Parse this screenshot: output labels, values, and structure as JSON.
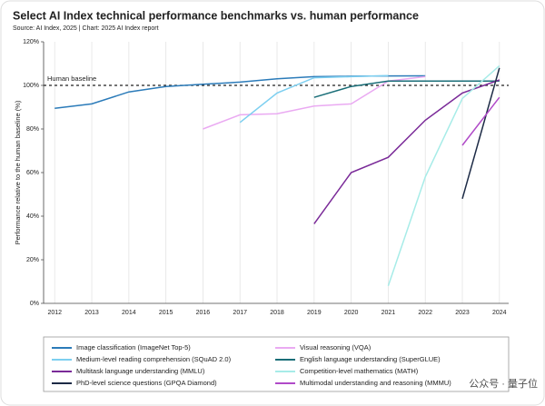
{
  "chart_data": {
    "type": "line",
    "title": "Select AI Index technical performance benchmarks vs. human performance",
    "subtitle": "Source: AI Index, 2025 | Chart: 2025 AI Index report",
    "y_label": "Performance relative to the human baseline (%)",
    "x": [
      2012,
      2013,
      2014,
      2015,
      2016,
      2017,
      2018,
      2019,
      2020,
      2021,
      2022,
      2023,
      2024
    ],
    "xlim": [
      2011.7,
      2024.25
    ],
    "xticks": [
      2012,
      2013,
      2014,
      2015,
      2016,
      2017,
      2018,
      2019,
      2020,
      2021,
      2022,
      2023,
      2024
    ],
    "ylim": [
      0,
      120
    ],
    "yticks": [
      {
        "value": 0,
        "label": "0%"
      },
      {
        "value": 20,
        "label": "20%"
      },
      {
        "value": 40,
        "label": "40%"
      },
      {
        "value": 60,
        "label": "60%"
      },
      {
        "value": 80,
        "label": "80%"
      },
      {
        "value": 100,
        "label": "100%"
      },
      {
        "value": 120,
        "label": "120%"
      }
    ],
    "grid": true,
    "human_baseline": {
      "label": "Human baseline",
      "value": 100
    },
    "series": [
      {
        "name": "Image classification (ImageNet Top-5)",
        "color": "#2b7bb9",
        "values": [
          89.5,
          91.5,
          97,
          99.5,
          100.5,
          101.5,
          103,
          104,
          104.2,
          104.3,
          104.4,
          null,
          null
        ]
      },
      {
        "name": "Visual reasoning (VQA)",
        "color": "#eaaaf2",
        "values": [
          null,
          null,
          null,
          null,
          80,
          86.5,
          87,
          90.5,
          91.5,
          102,
          104,
          null,
          null
        ]
      },
      {
        "name": "Medium-level reading comprehension (SQuAD 2.0)",
        "color": "#7dcff0",
        "values": [
          null,
          null,
          null,
          null,
          null,
          83,
          96.5,
          103.5,
          104,
          104.5,
          null,
          null,
          null
        ]
      },
      {
        "name": "English language understanding (SuperGLUE)",
        "color": "#1a6e78",
        "values": [
          null,
          null,
          null,
          null,
          null,
          null,
          null,
          94.5,
          99.5,
          102,
          102,
          102,
          102
        ]
      },
      {
        "name": "Multitask language understanding (MMLU)",
        "color": "#7a2a98",
        "values": [
          null,
          null,
          null,
          null,
          null,
          null,
          null,
          36.5,
          60,
          67,
          84,
          96.5,
          102.5
        ]
      },
      {
        "name": "Competition-level mathematics (MATH)",
        "color": "#a7ece8",
        "values": [
          null,
          null,
          null,
          null,
          null,
          null,
          null,
          null,
          null,
          8,
          58,
          94,
          109
        ]
      },
      {
        "name": "PhD-level science questions (GPQA Diamond)",
        "color": "#1c2a45",
        "values": [
          null,
          null,
          null,
          null,
          null,
          null,
          null,
          null,
          null,
          null,
          null,
          48,
          108
        ]
      },
      {
        "name": "Multimodal understanding and reasoning (MMMU)",
        "color": "#b04ac8",
        "values": [
          null,
          null,
          null,
          null,
          null,
          null,
          null,
          null,
          null,
          null,
          null,
          72.5,
          94.5
        ]
      }
    ],
    "watermark": "公众号 · 量子位"
  }
}
